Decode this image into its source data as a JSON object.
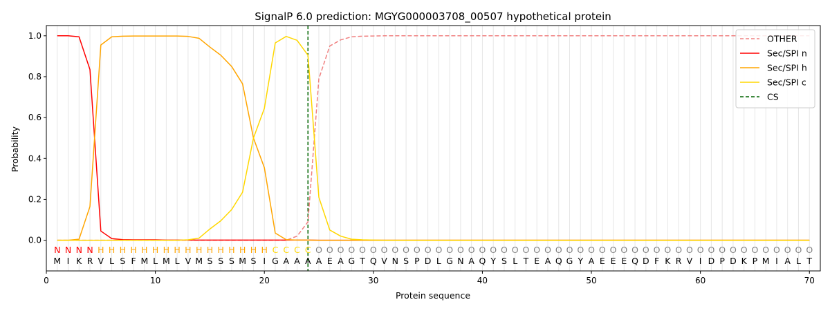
{
  "chart_data": {
    "type": "line",
    "title": "SignalP 6.0 prediction: MGYG000003708_00507 hypothetical protein",
    "xlabel": "Protein sequence",
    "ylabel": "Probability",
    "xlim": [
      0,
      71
    ],
    "ylim": [
      -0.15,
      1.05
    ],
    "xticks": [
      0,
      10,
      20,
      30,
      40,
      50,
      60,
      70
    ],
    "yticks": [
      0.0,
      0.2,
      0.4,
      0.6,
      0.8,
      1.0
    ],
    "x": [
      1,
      2,
      3,
      4,
      5,
      6,
      7,
      8,
      9,
      10,
      11,
      12,
      13,
      14,
      15,
      16,
      17,
      18,
      19,
      20,
      21,
      22,
      23,
      24,
      25,
      26,
      27,
      28,
      29,
      30,
      31,
      32,
      33,
      34,
      35,
      36,
      37,
      38,
      39,
      40,
      41,
      42,
      43,
      44,
      45,
      46,
      47,
      48,
      49,
      50,
      51,
      52,
      53,
      54,
      55,
      56,
      57,
      58,
      59,
      60,
      61,
      62,
      63,
      64,
      65,
      66,
      67,
      68,
      69,
      70
    ],
    "sequence": [
      "M",
      "I",
      "K",
      "R",
      "V",
      "L",
      "S",
      "F",
      "M",
      "L",
      "M",
      "L",
      "V",
      "M",
      "S",
      "S",
      "S",
      "M",
      "S",
      "I",
      "G",
      "A",
      "A",
      "A",
      "A",
      "E",
      "A",
      "G",
      "T",
      "Q",
      "V",
      "N",
      "S",
      "P",
      "D",
      "L",
      "G",
      "N",
      "A",
      "Q",
      "Y",
      "S",
      "L",
      "T",
      "E",
      "A",
      "Q",
      "G",
      "Y",
      "A",
      "E",
      "E",
      "E",
      "Q",
      "D",
      "F",
      "K",
      "R",
      "V",
      "I",
      "D",
      "P",
      "D",
      "K",
      "P",
      "M",
      "I",
      "A",
      "L",
      "T"
    ],
    "region_labels": [
      "N",
      "N",
      "N",
      "N",
      "H",
      "H",
      "H",
      "H",
      "H",
      "H",
      "H",
      "H",
      "H",
      "H",
      "H",
      "H",
      "H",
      "H",
      "H",
      "H",
      "C",
      "C",
      "C",
      "C",
      "O",
      "O",
      "O",
      "O",
      "O",
      "O",
      "O",
      "O",
      "O",
      "O",
      "O",
      "O",
      "O",
      "O",
      "O",
      "O",
      "O",
      "O",
      "O",
      "O",
      "O",
      "O",
      "O",
      "O",
      "O",
      "O",
      "O",
      "O",
      "O",
      "O",
      "O",
      "O",
      "O",
      "O",
      "O",
      "O",
      "O",
      "O",
      "O",
      "O",
      "O",
      "O",
      "O",
      "O",
      "O",
      "O"
    ],
    "region_colors": {
      "N": "#ff0000",
      "H": "#ffa500",
      "C": "#ffd700",
      "O": "#808080"
    },
    "cs_position": 24,
    "legend_position": "top-right",
    "grid": "vertical",
    "series": [
      {
        "name": "OTHER",
        "color": "#f08080",
        "dashed": true,
        "values": [
          0,
          0,
          0,
          0,
          0,
          0,
          0,
          0,
          0,
          0,
          0,
          0,
          0,
          0,
          0,
          0,
          0,
          0,
          0,
          0,
          0,
          0,
          0.02,
          0.09,
          0.79,
          0.95,
          0.98,
          0.995,
          0.998,
          0.999,
          1,
          1,
          1,
          1,
          1,
          1,
          1,
          1,
          1,
          1,
          1,
          1,
          1,
          1,
          1,
          1,
          1,
          1,
          1,
          1,
          1,
          1,
          1,
          1,
          1,
          1,
          1,
          1,
          1,
          1,
          1,
          1,
          1,
          1,
          1,
          1,
          1,
          1,
          1,
          1
        ]
      },
      {
        "name": "Sec/SPI n",
        "color": "#ff0000",
        "dashed": false,
        "values": [
          1.0,
          1.0,
          0.995,
          0.835,
          0.045,
          0.008,
          0.003,
          0.002,
          0.002,
          0.002,
          0.001,
          0.001,
          0.001,
          0.001,
          0.001,
          0.001,
          0.001,
          0.001,
          0.001,
          0.001,
          0.001,
          0.001,
          0.001,
          0.001,
          0,
          0,
          0,
          0,
          0,
          0,
          0,
          0,
          0,
          0,
          0,
          0,
          0,
          0,
          0,
          0,
          0,
          0,
          0,
          0,
          0,
          0,
          0,
          0,
          0,
          0,
          0,
          0,
          0,
          0,
          0,
          0,
          0,
          0,
          0,
          0,
          0,
          0,
          0,
          0,
          0,
          0,
          0,
          0,
          0,
          0
        ]
      },
      {
        "name": "Sec/SPI h",
        "color": "#ffa500",
        "dashed": false,
        "values": [
          0,
          0,
          0.005,
          0.165,
          0.955,
          0.995,
          0.998,
          0.999,
          0.999,
          0.999,
          0.999,
          0.999,
          0.997,
          0.988,
          0.945,
          0.905,
          0.85,
          0.765,
          0.5,
          0.355,
          0.035,
          0.003,
          0.001,
          0.001,
          0,
          0,
          0,
          0,
          0,
          0,
          0,
          0,
          0,
          0,
          0,
          0,
          0,
          0,
          0,
          0,
          0,
          0,
          0,
          0,
          0,
          0,
          0,
          0,
          0,
          0,
          0,
          0,
          0,
          0,
          0,
          0,
          0,
          0,
          0,
          0,
          0,
          0,
          0,
          0,
          0,
          0,
          0,
          0,
          0,
          0
        ]
      },
      {
        "name": "Sec/SPI c",
        "color": "#ffd700",
        "dashed": false,
        "values": [
          0,
          0,
          0,
          0,
          0,
          0,
          0,
          0,
          0,
          0,
          0,
          0,
          0.002,
          0.01,
          0.055,
          0.095,
          0.15,
          0.235,
          0.5,
          0.645,
          0.965,
          0.997,
          0.978,
          0.905,
          0.21,
          0.05,
          0.02,
          0.005,
          0.002,
          0.001,
          0,
          0,
          0,
          0,
          0,
          0,
          0,
          0,
          0,
          0,
          0,
          0,
          0,
          0,
          0,
          0,
          0,
          0,
          0,
          0,
          0,
          0,
          0,
          0,
          0,
          0,
          0,
          0,
          0,
          0,
          0,
          0,
          0,
          0,
          0,
          0,
          0,
          0,
          0,
          0
        ]
      }
    ],
    "cs_legend": {
      "name": "CS",
      "color": "#006400"
    }
  }
}
